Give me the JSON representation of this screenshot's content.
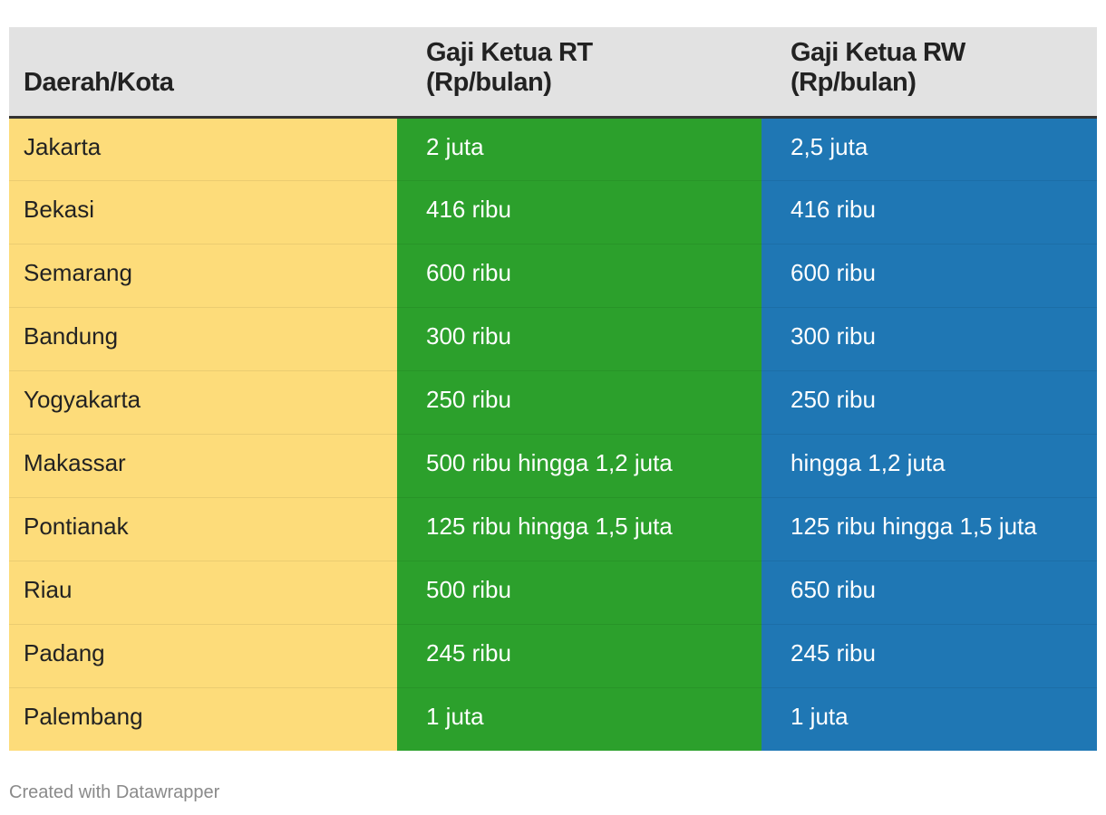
{
  "chart_data": {
    "type": "table",
    "columns": [
      "Daerah/Kota",
      "Gaji Ketua RT\n(Rp/bulan)",
      "Gaji Ketua RW\n(Rp/bulan)"
    ],
    "header": {
      "col1": "Daerah/Kota",
      "col2_line1": "Gaji Ketua RT",
      "col2_line2": "(Rp/bulan)",
      "col3_line1": "Gaji Ketua RW",
      "col3_line2": "(Rp/bulan)"
    },
    "rows": [
      {
        "city": "Jakarta",
        "rt": "2 juta",
        "rw": "2,5 juta"
      },
      {
        "city": "Bekasi",
        "rt": "416 ribu",
        "rw": "416 ribu"
      },
      {
        "city": "Semarang",
        "rt": "600 ribu",
        "rw": "600 ribu"
      },
      {
        "city": "Bandung",
        "rt": "300 ribu",
        "rw": "300 ribu"
      },
      {
        "city": "Yogyakarta",
        "rt": "250 ribu",
        "rw": "250 ribu"
      },
      {
        "city": "Makassar",
        "rt": "500 ribu hingga 1,2 juta",
        "rw": "hingga 1,2 juta"
      },
      {
        "city": "Pontianak",
        "rt": "125 ribu hingga 1,5 juta",
        "rw": "125 ribu hingga 1,5 juta"
      },
      {
        "city": "Riau",
        "rt": "500 ribu",
        "rw": "650 ribu"
      },
      {
        "city": "Padang",
        "rt": "245 ribu",
        "rw": "245 ribu"
      },
      {
        "city": "Palembang",
        "rt": "1 juta",
        "rw": "1 juta"
      }
    ],
    "colors": {
      "header_bg": "#e2e2e2",
      "city_col": "#fddc7a",
      "rt_col": "#2ca02c",
      "rw_col": "#1f77b4"
    }
  },
  "footer": {
    "credit": "Created with Datawrapper"
  }
}
